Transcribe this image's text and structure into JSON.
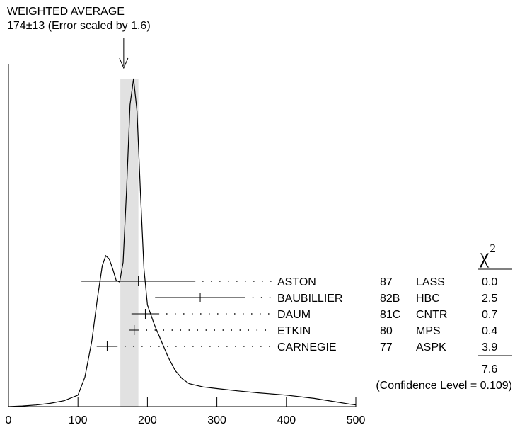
{
  "header": {
    "title": "WEIGHTED AVERAGE",
    "subtitle": "174±13 (Error scaled by 1.6)"
  },
  "chi2_header": {
    "symbol": "χ",
    "superscript": "2"
  },
  "summary": {
    "chi2_total": "7.6",
    "confidence_level": "(Confidence Level = 0.109)"
  },
  "chart_data": {
    "type": "scatter",
    "title": "WEIGHTED AVERAGE",
    "subtitle": "174±13 (Error scaled by 1.6)",
    "xlim": [
      0,
      500
    ],
    "x_ticks": [
      "0",
      "100",
      "200",
      "300",
      "400",
      "500"
    ],
    "weighted_average": {
      "value": 174,
      "error": 13,
      "error_scale_factor": 1.6
    },
    "measurements": [
      {
        "author": "ASTON",
        "year": "87",
        "experiment": "LASS",
        "value": 187,
        "error": 82,
        "chi2": "0.0"
      },
      {
        "author": "BAUBILLIER",
        "year": "82B",
        "experiment": "HBC",
        "value": 276,
        "error": 65,
        "chi2": "2.5"
      },
      {
        "author": "DAUM",
        "year": "81C",
        "experiment": "CNTR",
        "value": 197,
        "error": 20,
        "chi2": "0.7"
      },
      {
        "author": "ETKIN",
        "year": "80",
        "experiment": "MPS",
        "value": 181,
        "error": 7,
        "chi2": "0.4"
      },
      {
        "author": "CARNEGIE",
        "year": "77",
        "experiment": "ASPK",
        "value": 142,
        "error": 15,
        "chi2": "3.9"
      }
    ],
    "ideogram_curve": [
      [
        0,
        0
      ],
      [
        20,
        0.002
      ],
      [
        40,
        0.005
      ],
      [
        60,
        0.01
      ],
      [
        80,
        0.018
      ],
      [
        100,
        0.035
      ],
      [
        110,
        0.09
      ],
      [
        120,
        0.2
      ],
      [
        128,
        0.33
      ],
      [
        135,
        0.43
      ],
      [
        140,
        0.46
      ],
      [
        145,
        0.45
      ],
      [
        150,
        0.42
      ],
      [
        155,
        0.385
      ],
      [
        160,
        0.38
      ],
      [
        165,
        0.44
      ],
      [
        170,
        0.66
      ],
      [
        175,
        0.92
      ],
      [
        180,
        1.0
      ],
      [
        185,
        0.9
      ],
      [
        190,
        0.65
      ],
      [
        195,
        0.42
      ],
      [
        200,
        0.31
      ],
      [
        210,
        0.25
      ],
      [
        220,
        0.2
      ],
      [
        230,
        0.15
      ],
      [
        240,
        0.11
      ],
      [
        250,
        0.085
      ],
      [
        260,
        0.07
      ],
      [
        280,
        0.06
      ],
      [
        300,
        0.055
      ],
      [
        330,
        0.048
      ],
      [
        360,
        0.042
      ],
      [
        400,
        0.035
      ],
      [
        440,
        0.025
      ],
      [
        470,
        0.015
      ],
      [
        490,
        0.008
      ],
      [
        500,
        0.005
      ]
    ]
  }
}
